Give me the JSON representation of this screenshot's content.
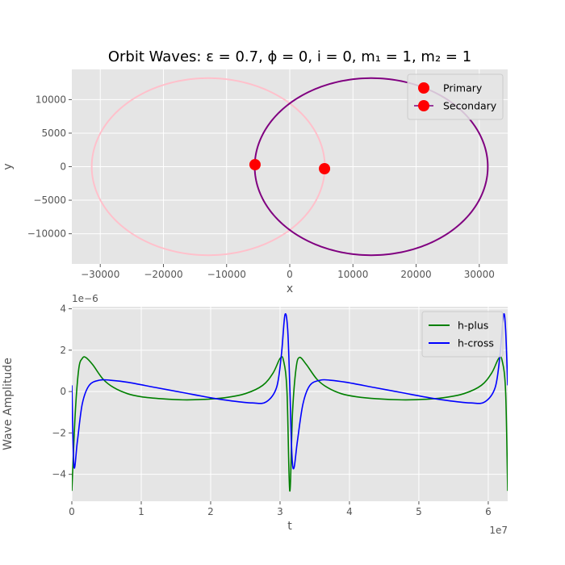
{
  "figure": {
    "title": "Orbit Waves: ε = 0.7, ϕ = 0, i = 0, m₁ = 1, m₂ = 1"
  },
  "chart_data": [
    {
      "type": "line",
      "title": "Orbit Waves: ε = 0.7, ϕ = 0, i = 0, m₁ = 1, m₂ = 1",
      "xlabel": "x",
      "ylabel": "y",
      "xlim": [
        -34500,
        34500
      ],
      "ylim": [
        -14500,
        14500
      ],
      "xticks": [
        -30000,
        -20000,
        -10000,
        0,
        10000,
        20000,
        30000
      ],
      "xtick_labels": [
        "−30000",
        "−20000",
        "−10000",
        "0",
        "10000",
        "20000",
        "30000"
      ],
      "yticks": [
        -10000,
        -5000,
        0,
        5000,
        10000
      ],
      "ytick_labels": [
        "−10000",
        "−5000",
        "0",
        "5000",
        "10000"
      ],
      "grid": true,
      "legend_position": "top-right",
      "orbits": [
        {
          "center_x": -12900,
          "center_y": 0,
          "semi_major": 18450,
          "semi_minor": 13200,
          "color": "#ffc0cb"
        },
        {
          "center_x": 12900,
          "center_y": 0,
          "semi_major": 18450,
          "semi_minor": 13200,
          "color": "#800080"
        }
      ],
      "bodies": [
        {
          "name": "Primary",
          "x": 5500,
          "y": -300,
          "color": "#ff0000"
        },
        {
          "name": "Secondary",
          "x": -5500,
          "y": 300,
          "color": "#ff0000"
        }
      ]
    },
    {
      "type": "line",
      "xlabel": "t",
      "ylabel": "Wave Amplitude",
      "x_multiplier_label": "1e7",
      "y_multiplier_label": "1e−6",
      "xlim": [
        0,
        6.28
      ],
      "ylim": [
        -5.3,
        4.1
      ],
      "xticks": [
        0,
        1,
        2,
        3,
        4,
        5,
        6
      ],
      "xtick_labels": [
        "0",
        "1",
        "2",
        "3",
        "4",
        "5",
        "6"
      ],
      "yticks": [
        -4,
        -2,
        0,
        2,
        4
      ],
      "ytick_labels": [
        "−4",
        "−2",
        "0",
        "2",
        "4"
      ],
      "grid": true,
      "legend_position": "top-right",
      "series": [
        {
          "name": "h-plus",
          "color": "#008000",
          "x": [
            0,
            0.05,
            0.1,
            0.15,
            0.2,
            0.3,
            0.45,
            0.6,
            0.8,
            1.0,
            1.3,
            1.6,
            1.9,
            2.2,
            2.5,
            2.75,
            2.9,
            3.0,
            3.05,
            3.1,
            3.14,
            3.18,
            3.23,
            3.28,
            3.38,
            3.53,
            3.68,
            3.88,
            4.1,
            4.4,
            4.75,
            5.05,
            5.35,
            5.65,
            5.9,
            6.05,
            6.15,
            6.2,
            6.25,
            6.28
          ],
          "y": [
            -4.8,
            -1.0,
            1.1,
            1.6,
            1.65,
            1.3,
            0.6,
            0.2,
            -0.1,
            -0.25,
            -0.35,
            -0.4,
            -0.38,
            -0.3,
            -0.1,
            0.3,
            0.9,
            1.6,
            1.5,
            0.0,
            -4.8,
            -1.0,
            1.1,
            1.65,
            1.3,
            0.6,
            0.2,
            -0.1,
            -0.25,
            -0.35,
            -0.4,
            -0.38,
            -0.3,
            -0.1,
            0.3,
            0.9,
            1.6,
            1.5,
            0.0,
            -4.8
          ]
        },
        {
          "name": "h-cross",
          "color": "#0000ff",
          "x": [
            0,
            0.03,
            0.08,
            0.15,
            0.25,
            0.4,
            0.55,
            0.8,
            1.2,
            1.6,
            2.0,
            2.3,
            2.6,
            2.8,
            2.95,
            3.02,
            3.07,
            3.11,
            3.14,
            3.17,
            3.2,
            3.25,
            3.33,
            3.43,
            3.58,
            3.72,
            3.95,
            4.35,
            4.75,
            5.15,
            5.45,
            5.75,
            5.95,
            6.1,
            6.17,
            6.22,
            6.25,
            6.28
          ],
          "y": [
            0.3,
            -3.6,
            -2.4,
            -0.6,
            0.3,
            0.55,
            0.55,
            0.45,
            0.2,
            -0.05,
            -0.3,
            -0.45,
            -0.55,
            -0.5,
            0.2,
            1.8,
            3.7,
            3.0,
            0.3,
            -3.0,
            -3.7,
            -2.4,
            -0.6,
            0.3,
            0.55,
            0.55,
            0.45,
            0.2,
            -0.05,
            -0.3,
            -0.45,
            -0.55,
            -0.5,
            0.2,
            1.8,
            3.7,
            3.0,
            0.3
          ]
        }
      ]
    }
  ]
}
